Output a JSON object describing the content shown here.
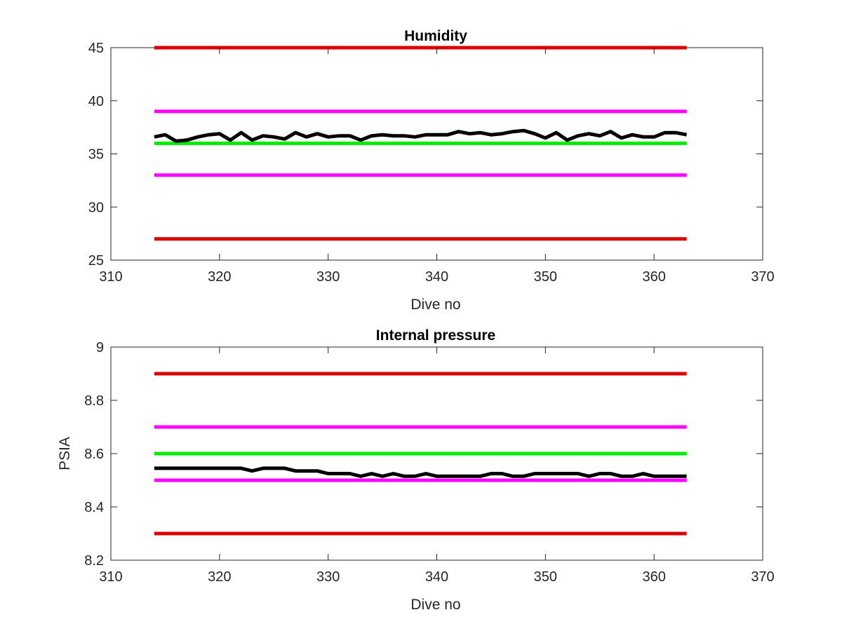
{
  "chart_data": [
    {
      "type": "line",
      "title": "Humidity",
      "xlabel": "Dive no",
      "ylabel": "",
      "xlim": [
        310,
        370
      ],
      "ylim": [
        25,
        45
      ],
      "xticks": [
        "310",
        "320",
        "330",
        "340",
        "350",
        "360",
        "370"
      ],
      "yticks": [
        "25",
        "30",
        "35",
        "40",
        "45"
      ],
      "grid": false,
      "limit_lines": [
        {
          "y": 45,
          "x": [
            314,
            363
          ],
          "color": "#dd0000"
        },
        {
          "y": 39,
          "x": [
            314,
            363
          ],
          "color": "#ff00ff"
        },
        {
          "y": 36,
          "x": [
            314,
            363
          ],
          "color": "#00ee00"
        },
        {
          "y": 33,
          "x": [
            314,
            363
          ],
          "color": "#ff00ff"
        },
        {
          "y": 27,
          "x": [
            314,
            363
          ],
          "color": "#dd0000"
        }
      ],
      "series": [
        {
          "color": "#000000",
          "x": [
            314,
            315,
            316,
            317,
            318,
            319,
            320,
            321,
            322,
            323,
            324,
            325,
            326,
            327,
            328,
            329,
            330,
            331,
            332,
            333,
            334,
            335,
            336,
            337,
            338,
            339,
            340,
            341,
            342,
            343,
            344,
            345,
            346,
            347,
            348,
            349,
            350,
            351,
            352,
            353,
            354,
            355,
            356,
            357,
            358,
            359,
            360,
            361,
            362,
            363
          ],
          "y": [
            36.6,
            36.8,
            36.2,
            36.3,
            36.6,
            36.8,
            36.9,
            36.3,
            37.0,
            36.3,
            36.7,
            36.6,
            36.4,
            37.0,
            36.6,
            36.9,
            36.6,
            36.7,
            36.7,
            36.3,
            36.7,
            36.8,
            36.7,
            36.7,
            36.6,
            36.8,
            36.8,
            36.8,
            37.1,
            36.9,
            37.0,
            36.8,
            36.9,
            37.1,
            37.2,
            36.9,
            36.5,
            37.0,
            36.3,
            36.7,
            36.9,
            36.7,
            37.1,
            36.5,
            36.8,
            36.6,
            36.6,
            37.0,
            37.0,
            36.8
          ]
        }
      ]
    },
    {
      "type": "line",
      "title": "Internal pressure",
      "xlabel": "Dive no",
      "ylabel": "PSIA",
      "xlim": [
        310,
        370
      ],
      "ylim": [
        8.2,
        9
      ],
      "xticks": [
        "310",
        "320",
        "330",
        "340",
        "350",
        "360",
        "370"
      ],
      "yticks": [
        "8.2",
        "8.4",
        "8.6",
        "8.8",
        "9"
      ],
      "grid": false,
      "limit_lines": [
        {
          "y": 8.9,
          "x": [
            314,
            363
          ],
          "color": "#dd0000"
        },
        {
          "y": 8.7,
          "x": [
            314,
            363
          ],
          "color": "#ff00ff"
        },
        {
          "y": 8.6,
          "x": [
            314,
            363
          ],
          "color": "#00ee00"
        },
        {
          "y": 8.5,
          "x": [
            314,
            363
          ],
          "color": "#ff00ff"
        },
        {
          "y": 8.3,
          "x": [
            314,
            363
          ],
          "color": "#dd0000"
        }
      ],
      "series": [
        {
          "color": "#000000",
          "x": [
            314,
            315,
            316,
            317,
            318,
            319,
            320,
            321,
            322,
            323,
            324,
            325,
            326,
            327,
            328,
            329,
            330,
            331,
            332,
            333,
            334,
            335,
            336,
            337,
            338,
            339,
            340,
            341,
            342,
            343,
            344,
            345,
            346,
            347,
            348,
            349,
            350,
            351,
            352,
            353,
            354,
            355,
            356,
            357,
            358,
            359,
            360,
            361,
            362,
            363
          ],
          "y": [
            8.545,
            8.545,
            8.545,
            8.545,
            8.545,
            8.545,
            8.545,
            8.545,
            8.545,
            8.535,
            8.545,
            8.545,
            8.545,
            8.535,
            8.535,
            8.535,
            8.525,
            8.525,
            8.525,
            8.515,
            8.525,
            8.515,
            8.525,
            8.515,
            8.515,
            8.525,
            8.515,
            8.515,
            8.515,
            8.515,
            8.515,
            8.525,
            8.525,
            8.515,
            8.515,
            8.525,
            8.525,
            8.525,
            8.525,
            8.525,
            8.515,
            8.525,
            8.525,
            8.515,
            8.515,
            8.525,
            8.515,
            8.515,
            8.515,
            8.515
          ]
        }
      ]
    }
  ]
}
